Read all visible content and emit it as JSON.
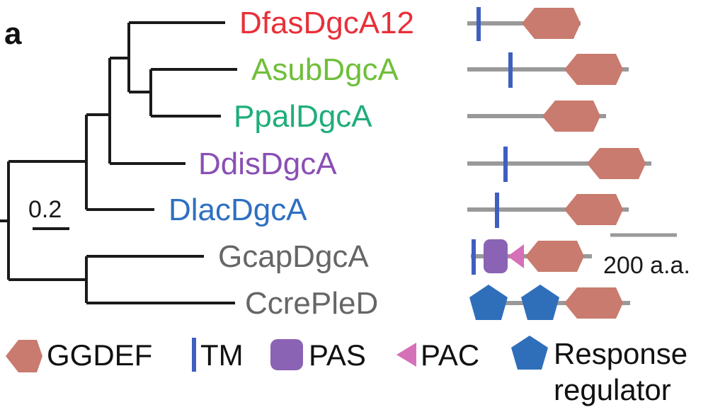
{
  "panel_label": "a",
  "tree": {
    "scale_bar_label": "0.2",
    "taxa": [
      {
        "name": "DfasDgcA12",
        "color": "#e8303a"
      },
      {
        "name": "AsubDgcA",
        "color": "#6fbf3a"
      },
      {
        "name": "PpalDgcA",
        "color": "#1fae7a"
      },
      {
        "name": "DdisDgcA",
        "color": "#8a4fb5"
      },
      {
        "name": "DlacDgcA",
        "color": "#2e6fc2"
      },
      {
        "name": "GcapDgcA",
        "color": "#666666"
      },
      {
        "name": "CcrePleD",
        "color": "#666666"
      }
    ]
  },
  "domain_scale_bar_label": "200 a.a.",
  "legend": {
    "ggdef": "GGDEF",
    "tm": "TM",
    "pas": "PAS",
    "pac": "PAC",
    "response_line1": "Response",
    "response_line2": "regulator"
  },
  "colors": {
    "ggdef": "#c87b6e",
    "tm": "#3f5fbf",
    "pas": "#8b63b4",
    "pac": "#d670b8",
    "response_regulator": "#2f6fba",
    "backbone": "#999999",
    "tree_lines": "#1a1a1a"
  }
}
